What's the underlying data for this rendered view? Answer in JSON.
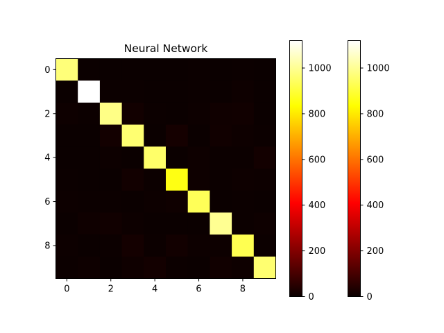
{
  "chart_data": {
    "type": "heatmap",
    "title": "Neural Network",
    "xlabel": "",
    "ylabel": "",
    "colormap": "hot",
    "x_ticks": [
      "0",
      "2",
      "4",
      "6",
      "8"
    ],
    "y_ticks": [
      "0",
      "2",
      "4",
      "6",
      "8"
    ],
    "rows": 10,
    "cols": 10,
    "matrix": [
      [
        971,
        0,
        1,
        1,
        0,
        1,
        3,
        1,
        2,
        0
      ],
      [
        0,
        1120,
        2,
        2,
        0,
        1,
        3,
        1,
        6,
        0
      ],
      [
        6,
        3,
        985,
        12,
        3,
        0,
        4,
        9,
        10,
        0
      ],
      [
        0,
        0,
        13,
        962,
        0,
        17,
        0,
        11,
        5,
        2
      ],
      [
        1,
        0,
        4,
        1,
        953,
        0,
        5,
        2,
        2,
        14
      ],
      [
        3,
        0,
        0,
        12,
        2,
        857,
        6,
        2,
        6,
        4
      ],
      [
        4,
        3,
        2,
        1,
        4,
        7,
        934,
        0,
        3,
        0
      ],
      [
        1,
        7,
        10,
        4,
        1,
        0,
        0,
        998,
        2,
        5
      ],
      [
        4,
        1,
        3,
        15,
        3,
        12,
        4,
        4,
        926,
        2
      ],
      [
        3,
        5,
        1,
        7,
        13,
        3,
        1,
        11,
        5,
        960
      ]
    ],
    "colorbars": [
      {
        "ticks": [
          "0",
          "200",
          "400",
          "600",
          "800",
          "1000"
        ],
        "tick_values": [
          0,
          200,
          400,
          600,
          800,
          1000
        ],
        "vmin": 0,
        "vmax": 1120
      },
      {
        "ticks": [
          "0",
          "200",
          "400",
          "600",
          "800",
          "1000"
        ],
        "tick_values": [
          0,
          200,
          400,
          600,
          800,
          1000
        ],
        "vmin": 0,
        "vmax": 1120
      }
    ]
  }
}
